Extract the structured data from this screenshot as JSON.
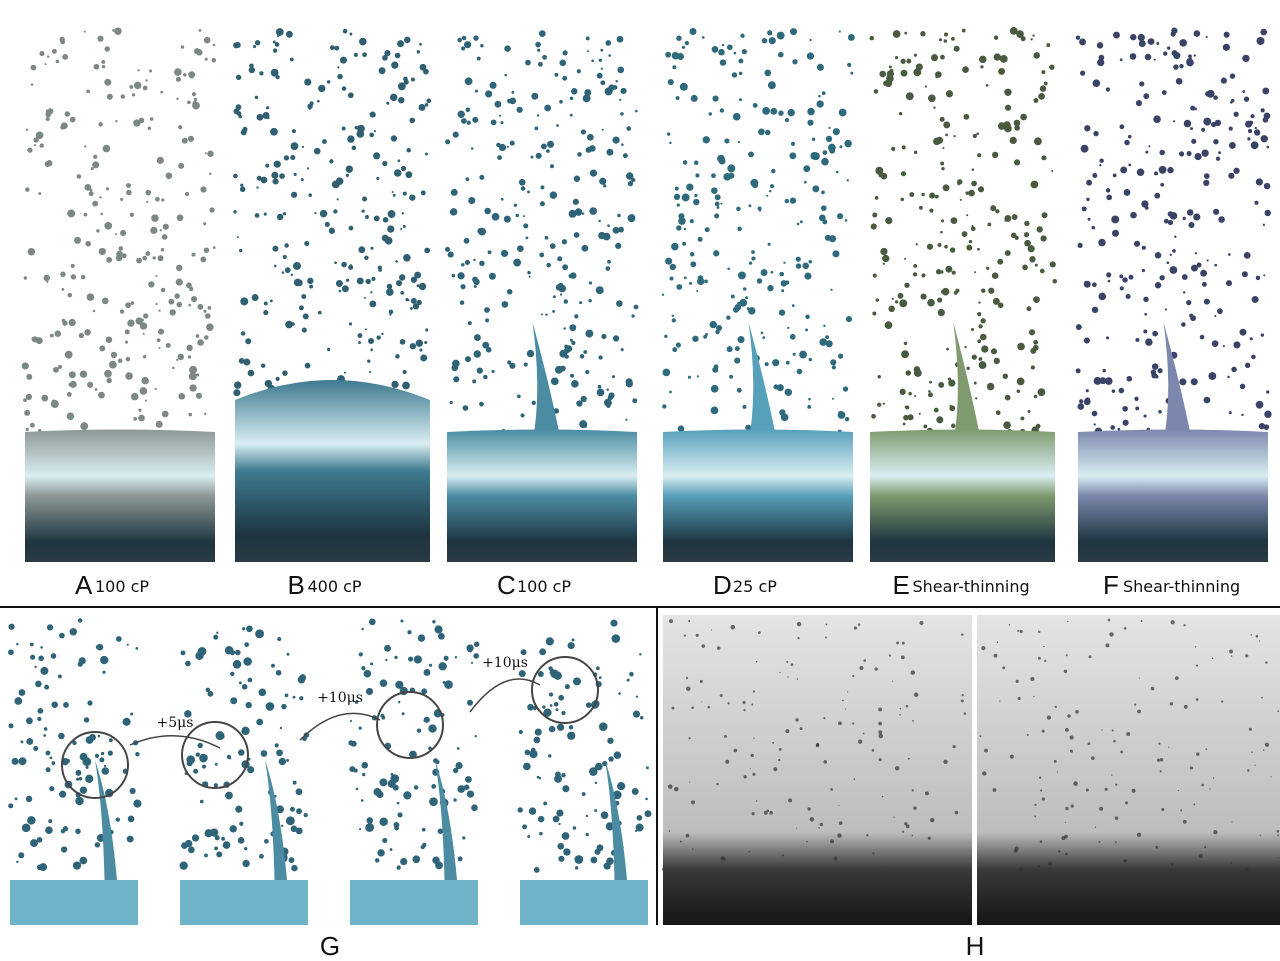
{
  "panels": [
    {
      "letter": "A",
      "label": "100 cP"
    },
    {
      "letter": "B",
      "label": "400 cP"
    },
    {
      "letter": "C",
      "label": "100 cP"
    },
    {
      "letter": "D",
      "label": "25 cP"
    },
    {
      "letter": "E",
      "label": "Shear-thinning"
    },
    {
      "letter": "F",
      "label": "Shear-thinning"
    }
  ],
  "sequence": {
    "letter": "G",
    "steps": [
      "+5μs",
      "+10μs",
      "+10μs"
    ]
  },
  "photos": {
    "letter": "H"
  }
}
